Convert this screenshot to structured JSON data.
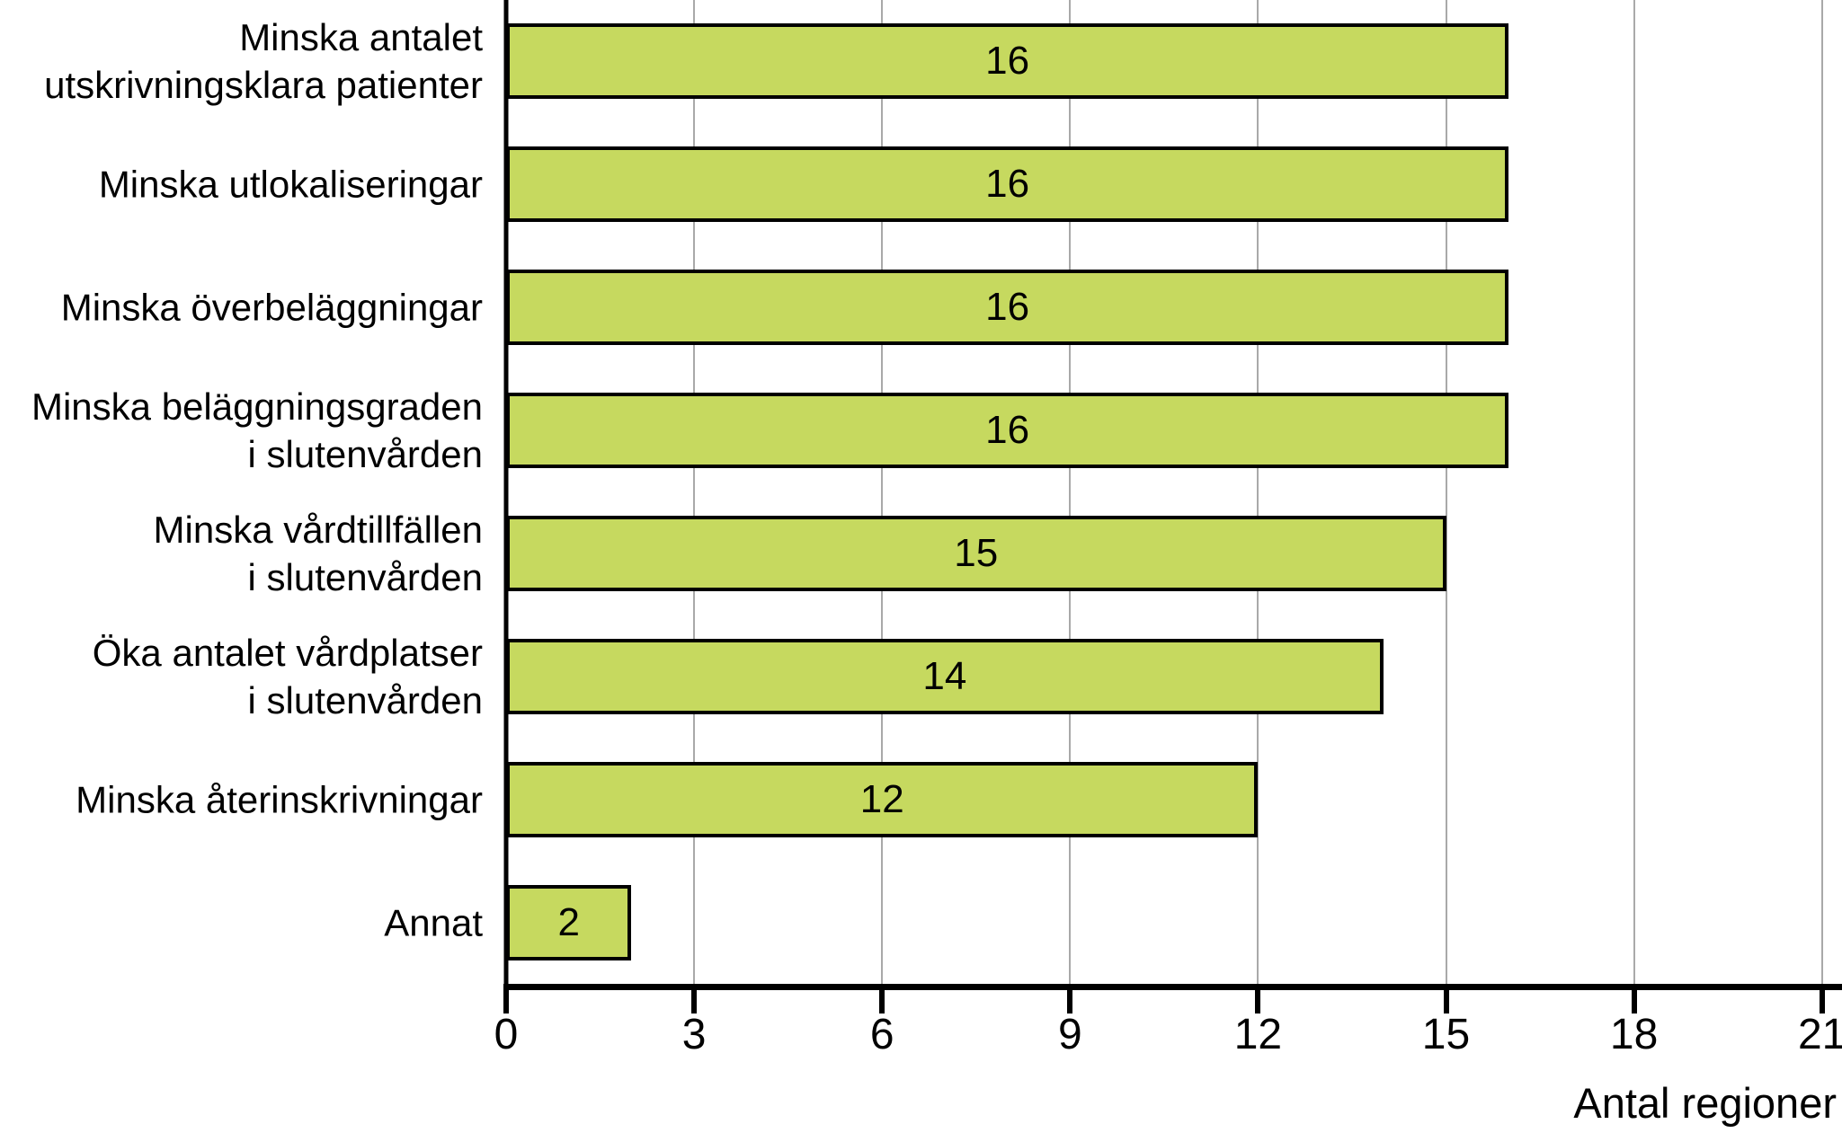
{
  "chart_data": {
    "type": "bar",
    "orientation": "horizontal",
    "title": "",
    "categories": [
      "Minska antalet\nutskrivningsklara patienter",
      "Minska utlokaliseringar",
      "Minska överbeläggningar",
      "Minska beläggningsgraden\ni slutenvården",
      "Minska vårdtillfällen\ni slutenvården",
      "Öka antalet vårdplatser\ni slutenvården",
      "Minska återinskrivningar",
      "Annat"
    ],
    "values": [
      16,
      16,
      16,
      16,
      15,
      14,
      12,
      2
    ],
    "xlabel": "Antal regioner",
    "ylabel": "",
    "xlim": [
      0,
      21
    ],
    "xticks": [
      "0",
      "3",
      "6",
      "9",
      "12",
      "15",
      "18",
      "21"
    ],
    "grid": true,
    "legend_position": "none",
    "colors": {
      "bar_fill": "#c6d95f",
      "bar_border": "#000000",
      "gridline": "#a9a9a9",
      "axis": "#000000",
      "text": "#000000",
      "background": "#ffffff"
    }
  }
}
